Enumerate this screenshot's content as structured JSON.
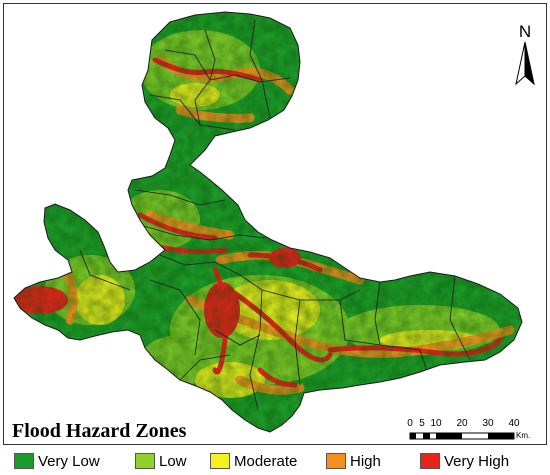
{
  "map": {
    "title": "Flood Hazard Zones",
    "north_arrow_label": "N",
    "north_arrow_icon": "north-arrow-icon",
    "scale_bar": {
      "ticks": [
        "0",
        "5",
        "10",
        "20",
        "30",
        "40"
      ],
      "unit": "Km."
    }
  },
  "legend": {
    "items": [
      {
        "label": "Very Low",
        "color": "#1a9a28"
      },
      {
        "label": "Low",
        "color": "#8fd12a"
      },
      {
        "label": "Moderate",
        "color": "#f5f01e"
      },
      {
        "label": "High",
        "color": "#f5901e"
      },
      {
        "label": "Very High",
        "color": "#e8231c"
      }
    ]
  }
}
